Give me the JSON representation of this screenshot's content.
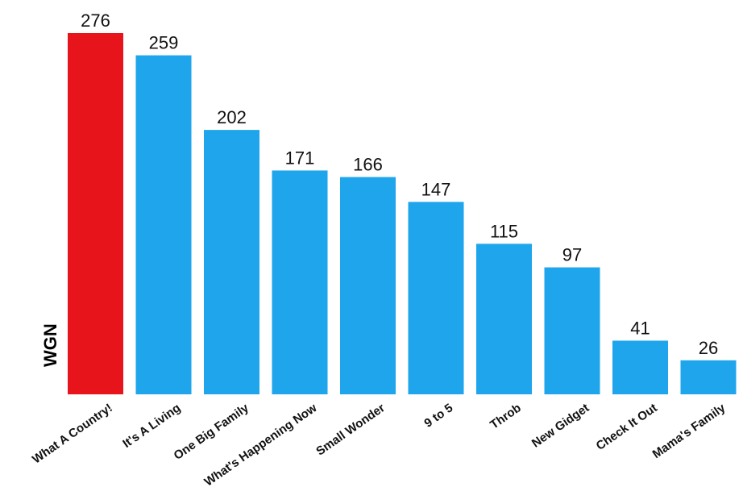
{
  "chart_data": {
    "type": "bar",
    "ylabel": "WGN",
    "categories": [
      "What A Country!",
      "It's A Living",
      "One Big Family",
      "What's Happening Now",
      "Small Wonder",
      "9 to 5",
      "Throb",
      "New Gidget",
      "Check It Out",
      "Mama's Family"
    ],
    "values": [
      276,
      259,
      202,
      171,
      166,
      147,
      115,
      97,
      41,
      26
    ],
    "highlight_color": "#e8141b",
    "bar_color": "#1ea5ec",
    "ylim": [
      0,
      276
    ]
  }
}
